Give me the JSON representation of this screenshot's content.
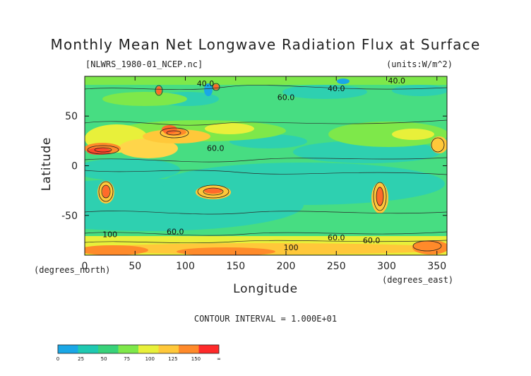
{
  "chart_data": {
    "type": "heatmap",
    "title": "Monthly Mean Net Longwave Radiation Flux at Surface",
    "file_label": "[NLWRS_1980-01_NCEP.nc]",
    "units_label": "(units:W/m^2)",
    "xlabel": "Longitude",
    "ylabel": "Latitude",
    "x_unit_label": "(degrees_east)",
    "y_unit_label": "(degrees_north)",
    "x_ticks": [
      0,
      50,
      100,
      150,
      200,
      250,
      300,
      350
    ],
    "y_ticks": [
      50,
      0,
      -50
    ],
    "xlim": [
      0,
      360
    ],
    "ylim": [
      -90,
      90
    ],
    "contour_interval_label": "CONTOUR INTERVAL = 1.000E+01",
    "contour_labels": [
      {
        "text": "40.0",
        "lon": 120,
        "lat": 80
      },
      {
        "text": "40.0",
        "lon": 250,
        "lat": 75
      },
      {
        "text": "40.0",
        "lon": 310,
        "lat": 83
      },
      {
        "text": "60.0",
        "lon": 200,
        "lat": 66
      },
      {
        "text": "60.0",
        "lon": 130,
        "lat": 15
      },
      {
        "text": "100",
        "lon": 25,
        "lat": -72
      },
      {
        "text": "60.0",
        "lon": 90,
        "lat": -69
      },
      {
        "text": "60.0",
        "lon": 250,
        "lat": -75
      },
      {
        "text": "100",
        "lon": 205,
        "lat": -85
      },
      {
        "text": "60.0",
        "lon": 285,
        "lat": -78
      }
    ],
    "colorbar": {
      "ticks": [
        "0",
        "25",
        "50",
        "75",
        "100",
        "125",
        "150",
        "∞"
      ],
      "colors": [
        "#1aa7e6",
        "#1fc9b1",
        "#38d27a",
        "#7ee84a",
        "#e8f03a",
        "#ffc83a",
        "#ff8a2a",
        "#ff2a2a"
      ]
    }
  }
}
